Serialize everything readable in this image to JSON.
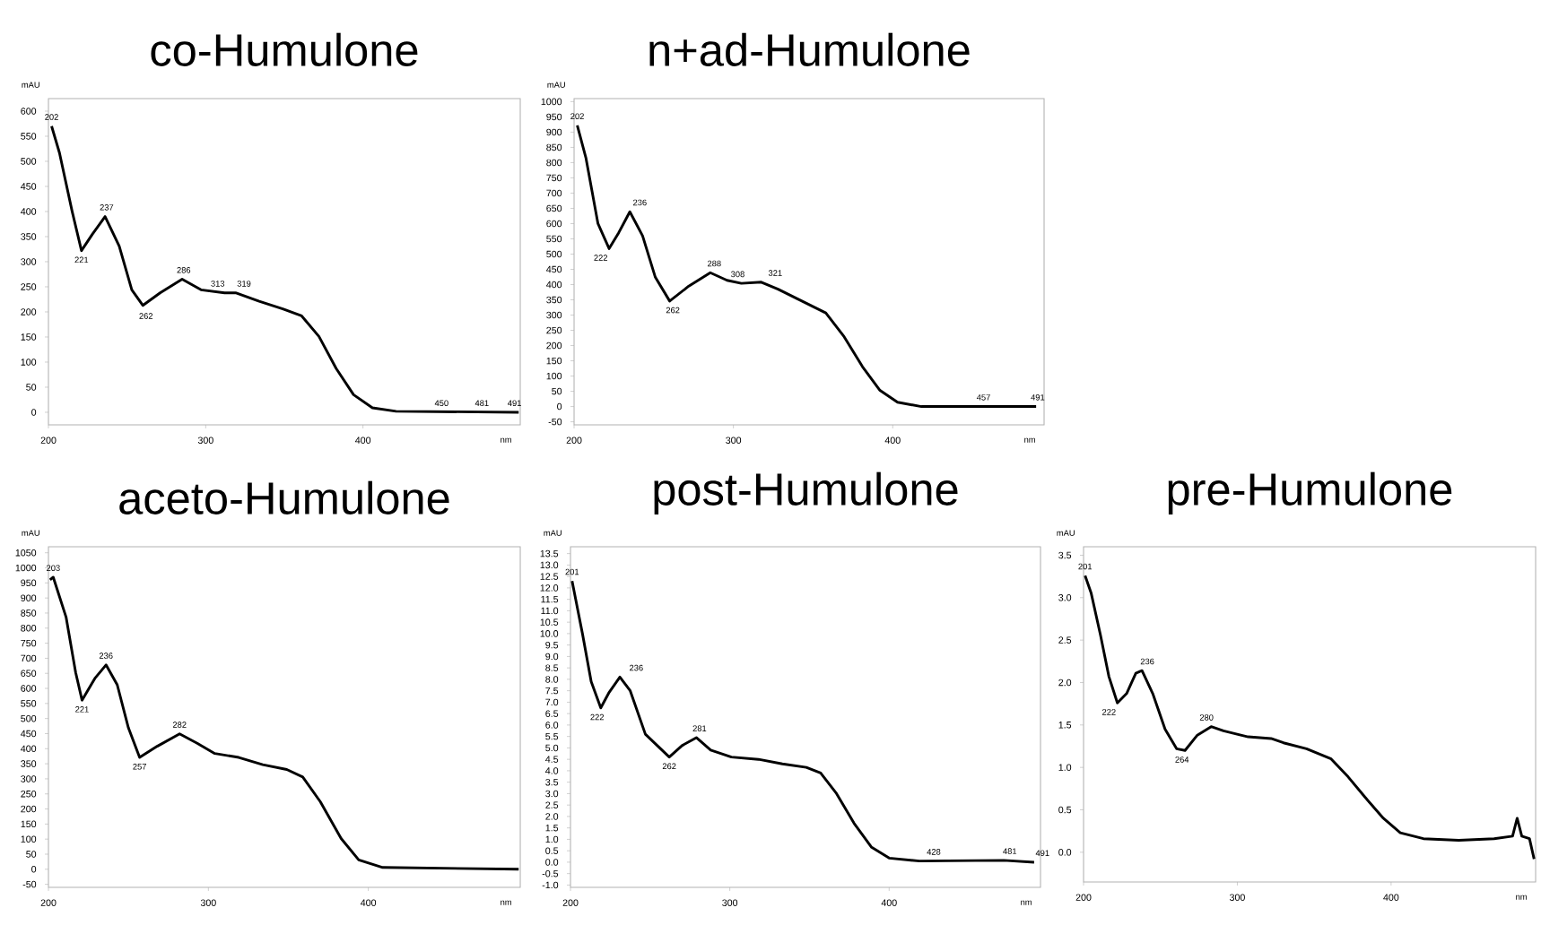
{
  "chart_data": [
    {
      "type": "line",
      "title": "co-Humulone",
      "xlabel": "nm",
      "ylabel": "mAU",
      "xlim": [
        200,
        500
      ],
      "ylim": [
        -25,
        625
      ],
      "xticks": [
        200,
        300,
        400
      ],
      "yticks": [
        0,
        50,
        100,
        150,
        200,
        250,
        300,
        350,
        400,
        450,
        500,
        550,
        600
      ],
      "series": [
        {
          "color": "#000000",
          "x": [
            202,
            207,
            215,
            221,
            228,
            236,
            245,
            253,
            260,
            271,
            285,
            297,
            312,
            319,
            334,
            349,
            361,
            372,
            383,
            394,
            406,
            421,
            499
          ],
          "values": [
            570,
            517,
            401,
            322,
            355,
            390,
            331,
            244,
            213,
            238,
            265,
            244,
            238,
            238,
            221,
            206,
            192,
            151,
            87,
            35,
            9,
            2,
            0
          ]
        }
      ],
      "annotations": [
        {
          "text": "202",
          "x": 202,
          "y": 570
        },
        {
          "text": "221",
          "x": 221,
          "y": 322
        },
        {
          "text": "237",
          "x": 237,
          "y": 390
        },
        {
          "text": "262",
          "x": 262,
          "y": 210
        },
        {
          "text": "286",
          "x": 286,
          "y": 265
        },
        {
          "text": "313",
          "x": 313,
          "y": 238
        },
        {
          "text": "319",
          "x": 319,
          "y": 238
        },
        {
          "text": "450",
          "x": 450,
          "y": 0
        },
        {
          "text": "481",
          "x": 481,
          "y": 0
        },
        {
          "text": "491",
          "x": 491,
          "y": 0
        }
      ]
    },
    {
      "type": "line",
      "title": "n+ad-Humulone",
      "xlabel": "nm",
      "ylabel": "mAU",
      "xlim": [
        200,
        495
      ],
      "ylim": [
        -60,
        1010
      ],
      "xticks": [
        200,
        300,
        400
      ],
      "yticks": [
        -50,
        0,
        50,
        100,
        150,
        200,
        250,
        300,
        350,
        400,
        450,
        500,
        550,
        600,
        650,
        700,
        750,
        800,
        850,
        900,
        950,
        1000
      ],
      "series": [
        {
          "color": "#000000",
          "x": [
            202,
            207.5,
            215,
            222,
            228,
            235,
            243,
            251,
            260,
            272,
            285.5,
            296,
            305,
            317.5,
            328,
            343,
            358,
            369.5,
            381,
            392,
            403,
            418,
            490
          ],
          "values": [
            922,
            814,
            600,
            518,
            570,
            639,
            560,
            424,
            346,
            395,
            439,
            414,
            404,
            408,
            385,
            346,
            307,
            229,
            131,
            53,
            14,
            0,
            0
          ]
        }
      ],
      "annotations": [
        {
          "text": "202",
          "x": 202,
          "y": 922
        },
        {
          "text": "222",
          "x": 222,
          "y": 518
        },
        {
          "text": "236",
          "x": 236,
          "y": 639
        },
        {
          "text": "262",
          "x": 262,
          "y": 346
        },
        {
          "text": "288",
          "x": 288,
          "y": 439
        },
        {
          "text": "308",
          "x": 308,
          "y": 404
        },
        {
          "text": "321",
          "x": 321,
          "y": 408
        },
        {
          "text": "457",
          "x": 457,
          "y": 0
        },
        {
          "text": "491",
          "x": 491,
          "y": 0
        }
      ]
    },
    {
      "type": "line",
      "title": "aceto-Humulone",
      "xlabel": "nm",
      "ylabel": "mAU",
      "xlim": [
        200,
        495
      ],
      "ylim": [
        -60,
        1070
      ],
      "xticks": [
        200,
        300,
        400
      ],
      "yticks": [
        -50,
        0,
        50,
        100,
        150,
        200,
        250,
        300,
        350,
        400,
        450,
        500,
        550,
        600,
        650,
        700,
        750,
        800,
        850,
        900,
        950,
        1000,
        1050
      ],
      "series": [
        {
          "color": "#000000",
          "x": [
            201,
            203,
            211,
            217,
            221,
            229,
            236,
            243,
            250,
            257,
            268,
            282,
            293,
            304,
            319,
            334,
            349,
            359,
            370,
            383,
            394,
            409,
            494
          ],
          "values": [
            960,
            969,
            837,
            653,
            561,
            633,
            678,
            612,
            469,
            371,
            408,
            449,
            418,
            384,
            371,
            347,
            331,
            306,
            224,
            102,
            31,
            6,
            0
          ]
        }
      ],
      "annotations": [
        {
          "text": "203",
          "x": 203,
          "y": 969
        },
        {
          "text": "221",
          "x": 221,
          "y": 561
        },
        {
          "text": "236",
          "x": 236,
          "y": 678
        },
        {
          "text": "257",
          "x": 257,
          "y": 371
        },
        {
          "text": "282",
          "x": 282,
          "y": 449
        }
      ]
    },
    {
      "type": "line",
      "title": "post-Humulone",
      "xlabel": "nm",
      "ylabel": "mAU",
      "xlim": [
        200,
        495
      ],
      "ylim": [
        -1.1,
        13.8
      ],
      "xticks": [
        200,
        300,
        400
      ],
      "yticks": [
        {
          "value": -1,
          "label": "-1.0"
        },
        -0.5,
        {
          "value": 0,
          "label": "0.0"
        },
        0.5,
        {
          "value": 1,
          "label": "1.0"
        },
        1.5,
        {
          "value": 2,
          "label": "2.0"
        },
        2.5,
        {
          "value": 3,
          "label": "3.0"
        },
        3.5,
        {
          "value": 4,
          "label": "4.0"
        },
        4.5,
        {
          "value": 5,
          "label": "5.0"
        },
        5.5,
        {
          "value": 6,
          "label": "6.0"
        },
        6.5,
        {
          "value": 7,
          "label": "7.0"
        },
        7.5,
        {
          "value": 8,
          "label": "8.0"
        },
        8.5,
        {
          "value": 9,
          "label": "9.0"
        },
        9.5,
        {
          "value": 10,
          "label": "10.0"
        },
        10.5,
        {
          "value": 11,
          "label": "11.0"
        },
        11.5,
        {
          "value": 12,
          "label": "12.0"
        },
        12.5,
        {
          "value": 13,
          "label": "13.0"
        },
        13.5
      ],
      "series": [
        {
          "color": "#000000",
          "x": [
            201,
            207.5,
            213,
            219,
            224,
            231,
            237.5,
            247,
            262,
            270,
            279,
            288,
            301,
            318,
            333,
            348,
            357,
            367,
            378,
            389,
            400,
            419,
            472,
            491
          ],
          "values": [
            12.3,
            10.0,
            7.9,
            6.75,
            7.4,
            8.1,
            7.5,
            5.6,
            4.6,
            5.1,
            5.45,
            4.9,
            4.6,
            4.5,
            4.3,
            4.15,
            3.9,
            3.0,
            1.7,
            0.65,
            0.18,
            0.05,
            0.08,
            0
          ]
        }
      ],
      "annotations": [
        {
          "text": "201",
          "x": 201,
          "y": 12.3
        },
        {
          "text": "222",
          "x": 222,
          "y": 6.75
        },
        {
          "text": "236",
          "x": 236,
          "y": 8.1
        },
        {
          "text": "262",
          "x": 262,
          "y": 4.6
        },
        {
          "text": "281",
          "x": 281,
          "y": 5.45
        },
        {
          "text": "428",
          "x": 428,
          "y": 0.05
        },
        {
          "text": "481",
          "x": 481,
          "y": 0.08
        },
        {
          "text": "491",
          "x": 491,
          "y": 0
        }
      ]
    },
    {
      "type": "line",
      "title": "pre-Humulone",
      "xlabel": "nm",
      "ylabel": "mAU",
      "xlim": [
        200,
        494
      ],
      "ylim": [
        -0.35,
        3.6
      ],
      "xticks": [
        200,
        300,
        400
      ],
      "yticks": [
        {
          "value": 0,
          "label": "0.0"
        },
        0.5,
        {
          "value": 1,
          "label": "1.0"
        },
        1.5,
        {
          "value": 2,
          "label": "2.0"
        },
        2.5,
        {
          "value": 3,
          "label": "3.0"
        },
        3.5
      ],
      "series": [
        {
          "color": "#000000",
          "x": [
            201,
            205,
            211,
            216.5,
            222,
            228,
            234,
            238,
            245,
            253,
            260.5,
            266,
            274,
            283,
            291,
            307,
            322,
            330,
            345,
            361,
            372,
            383,
            395,
            406,
            421,
            444,
            467,
            479,
            482,
            485,
            490,
            493
          ],
          "values": [
            3.26,
            3.05,
            2.56,
            2.07,
            1.76,
            1.87,
            2.11,
            2.14,
            1.87,
            1.45,
            1.22,
            1.2,
            1.38,
            1.48,
            1.43,
            1.36,
            1.34,
            1.29,
            1.22,
            1.1,
            0.89,
            0.65,
            0.4,
            0.23,
            0.16,
            0.14,
            0.16,
            0.19,
            0.4,
            0.19,
            0.16,
            -0.08
          ]
        }
      ],
      "annotations": [
        {
          "text": "201",
          "x": 201,
          "y": 3.26
        },
        {
          "text": "222",
          "x": 222,
          "y": 1.76
        },
        {
          "text": "236",
          "x": 236,
          "y": 2.14
        },
        {
          "text": "264",
          "x": 264,
          "y": 1.2
        },
        {
          "text": "280",
          "x": 280,
          "y": 1.48
        }
      ]
    }
  ]
}
